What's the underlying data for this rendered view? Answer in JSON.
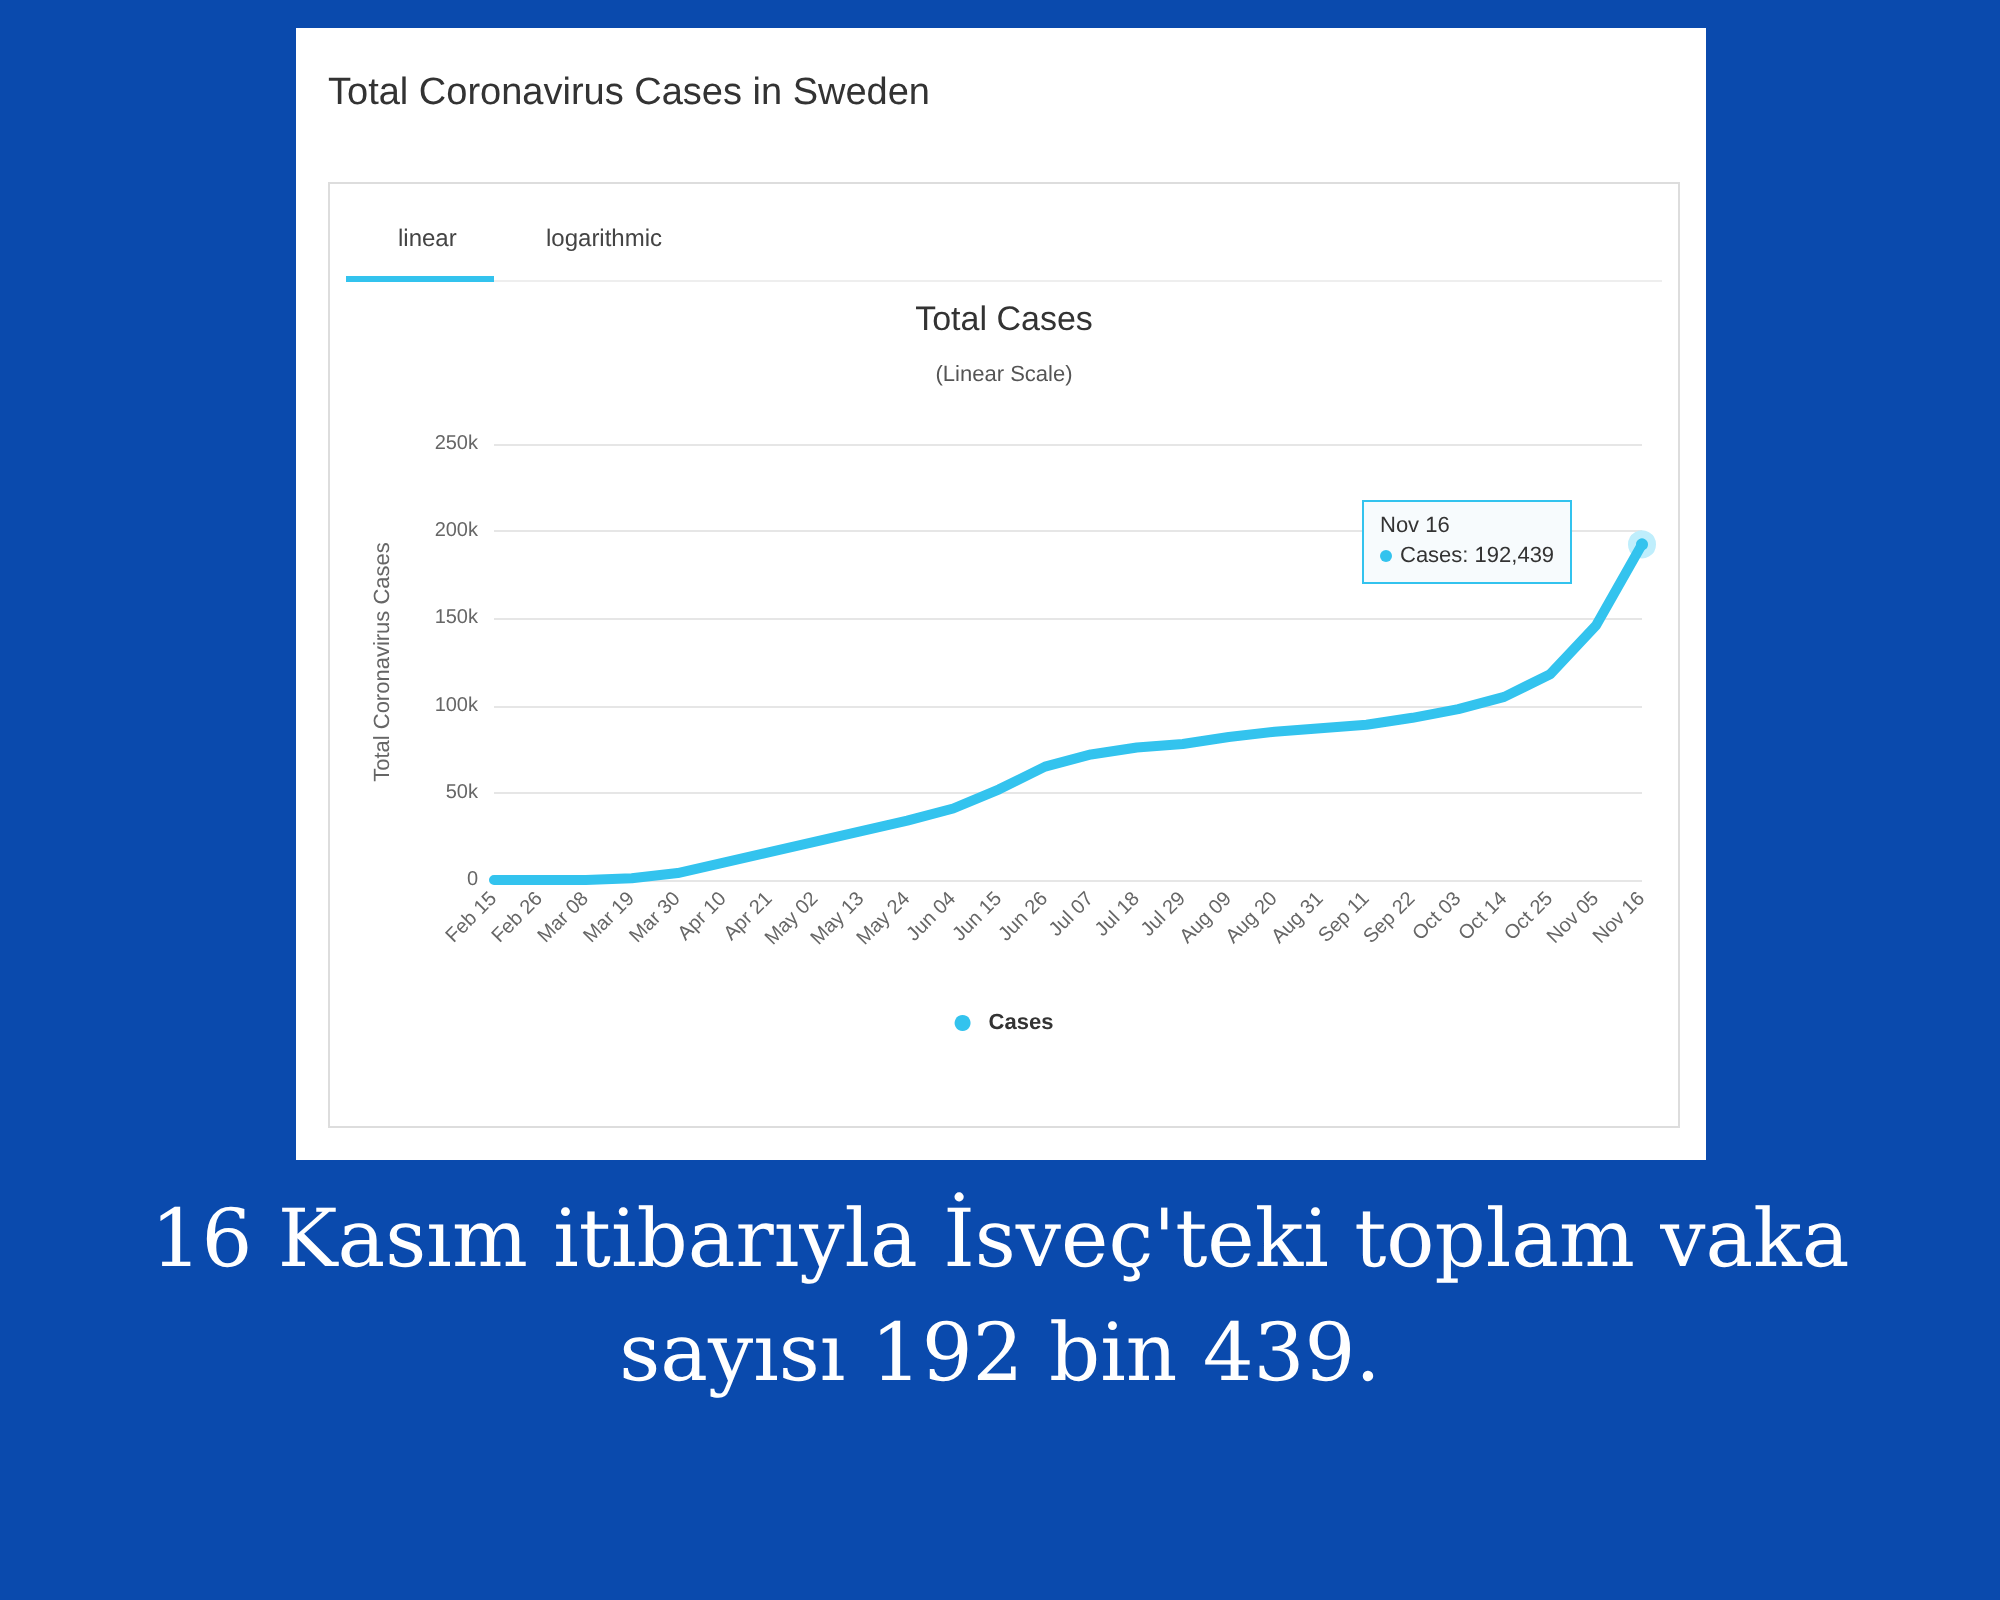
{
  "chart_data": {
    "type": "line",
    "title": "Total Coronavirus Cases in Sweden",
    "subtitle": "Total Cases",
    "ylabel": "Total Coronavirus Cases",
    "categories": [
      "Feb 15",
      "Feb 26",
      "Mar 08",
      "Mar 19",
      "Mar 30",
      "Apr 10",
      "Apr 21",
      "May 02",
      "May 13",
      "May 24",
      "Jun 04",
      "Jun 15",
      "Jun 26",
      "Jul 07",
      "Jul 18",
      "Jul 29",
      "Aug 09",
      "Aug 20",
      "Aug 31",
      "Sep 11",
      "Sep 22",
      "Oct 03",
      "Oct 14",
      "Oct 25",
      "Nov 05",
      "Nov 16"
    ],
    "series": [
      {
        "name": "Cases",
        "color": "#33c3ee",
        "values": [
          0,
          0,
          0,
          1000,
          4000,
          10000,
          16000,
          22000,
          28000,
          34000,
          41000,
          52000,
          65000,
          72000,
          76000,
          78000,
          82000,
          85000,
          87000,
          89000,
          93000,
          98000,
          105000,
          118000,
          146000,
          192439
        ]
      }
    ],
    "ylim": [
      0,
      250000
    ],
    "yticks": [
      {
        "value": 0,
        "label": "0"
      },
      {
        "value": 50000,
        "label": "50k"
      },
      {
        "value": 100000,
        "label": "100k"
      },
      {
        "value": 150000,
        "label": "150k"
      },
      {
        "value": 200000,
        "label": "200k"
      },
      {
        "value": 250000,
        "label": "250k"
      }
    ],
    "grid": "y",
    "legend": "bottom",
    "marker": "none",
    "line_style": "solid",
    "annotations": [
      "linear",
      "logarithmic",
      "(Linear Scale)",
      "Nov 16",
      "Cases: 192,439",
      "16 Kasım itibarıyla İsveç'teki toplam vaka sayısı 192 bin 439."
    ]
  }
}
